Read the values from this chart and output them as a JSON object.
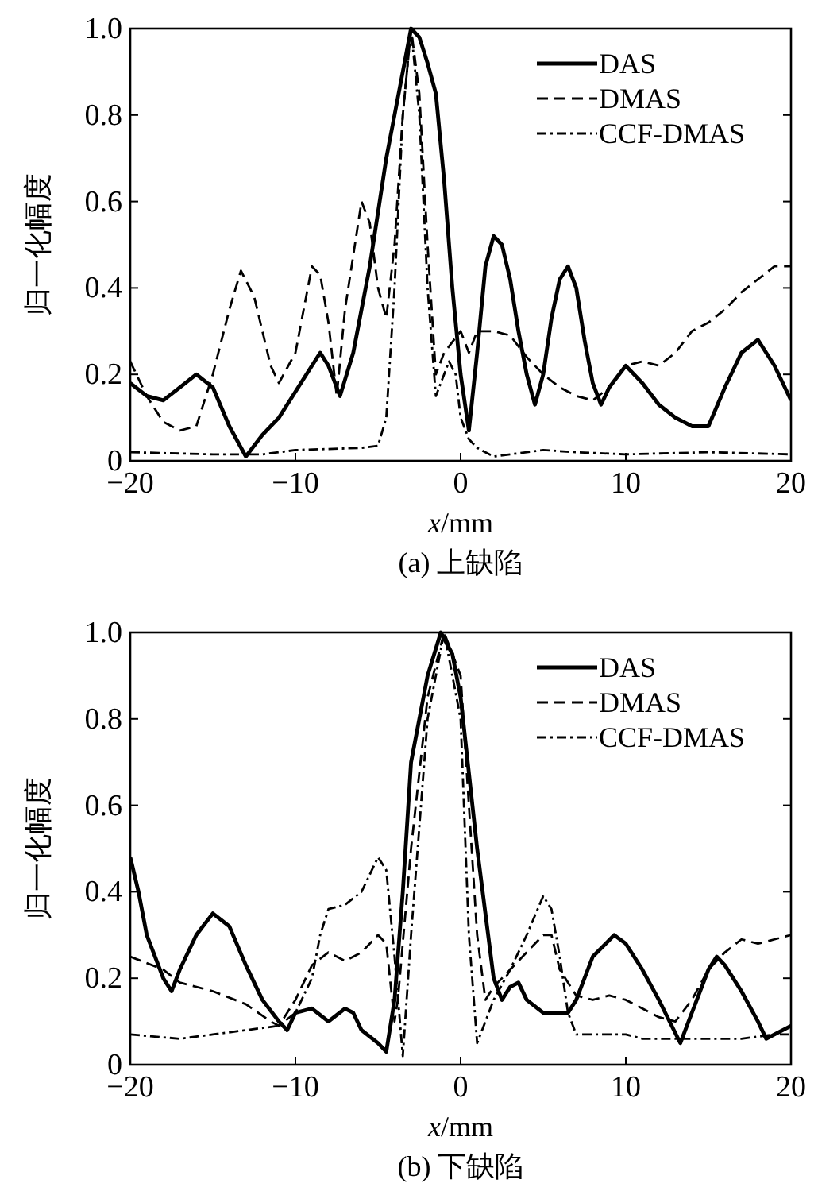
{
  "chart_data": [
    {
      "type": "line",
      "title": "(a) 上缺陷",
      "xlabel": "x/mm",
      "ylabel": "归一化幅度",
      "xlim": [
        -20,
        20
      ],
      "xticks": [
        -20,
        -10,
        0,
        10,
        20
      ],
      "ylim": [
        0,
        1
      ],
      "yticks": [
        0,
        0.2,
        0.4,
        0.6,
        0.8,
        {
          "value": 1,
          "label": "1.0"
        }
      ],
      "legend": "top right",
      "series": [
        {
          "name": "DAS",
          "color": "#000000",
          "line_style": "solid",
          "x": [
            -20,
            -19,
            -18,
            -17,
            -16,
            -15,
            -14,
            -13,
            -12,
            -11,
            -10,
            -9,
            -8.5,
            -8,
            -7.3,
            -6.5,
            -5.5,
            -4.5,
            -3.5,
            -3,
            -2.5,
            -2,
            -1.5,
            -1,
            -0.5,
            0,
            0.5,
            1,
            1.5,
            2,
            2.5,
            3,
            3.5,
            4,
            4.5,
            5,
            5.5,
            6,
            6.5,
            7,
            7.5,
            8,
            8.5,
            9,
            10,
            11,
            12,
            13,
            14,
            15,
            16,
            17,
            18,
            19,
            20
          ],
          "values": [
            0.18,
            0.15,
            0.14,
            0.17,
            0.2,
            0.17,
            0.08,
            0.01,
            0.06,
            0.1,
            0.16,
            0.22,
            0.25,
            0.22,
            0.15,
            0.25,
            0.45,
            0.7,
            0.9,
            1.0,
            0.98,
            0.92,
            0.85,
            0.65,
            0.4,
            0.2,
            0.07,
            0.25,
            0.45,
            0.52,
            0.5,
            0.42,
            0.3,
            0.2,
            0.13,
            0.2,
            0.33,
            0.42,
            0.45,
            0.4,
            0.28,
            0.18,
            0.13,
            0.17,
            0.22,
            0.18,
            0.13,
            0.1,
            0.08,
            0.08,
            0.17,
            0.25,
            0.28,
            0.22,
            0.14
          ]
        },
        {
          "name": "DMAS",
          "color": "#000000",
          "line_style": "dashed",
          "x": [
            -20,
            -19,
            -18,
            -17,
            -16,
            -15,
            -14,
            -13.3,
            -12.5,
            -11.5,
            -11,
            -10,
            -9,
            -8.5,
            -8,
            -7.5,
            -7,
            -6,
            -5.5,
            -5,
            -4.5,
            -4,
            -3.5,
            -3,
            -2.5,
            -2,
            -1.5,
            -1,
            0,
            0.5,
            1,
            2,
            3,
            4,
            5,
            6,
            7,
            8,
            9,
            10,
            11,
            12,
            13,
            14,
            15,
            16,
            17,
            18,
            19,
            20
          ],
          "values": [
            0.23,
            0.15,
            0.09,
            0.07,
            0.08,
            0.2,
            0.35,
            0.44,
            0.38,
            0.22,
            0.18,
            0.25,
            0.45,
            0.43,
            0.32,
            0.15,
            0.35,
            0.6,
            0.55,
            0.4,
            0.33,
            0.5,
            0.8,
            1.0,
            0.85,
            0.5,
            0.2,
            0.25,
            0.3,
            0.25,
            0.3,
            0.3,
            0.29,
            0.24,
            0.2,
            0.17,
            0.15,
            0.14,
            0.17,
            0.22,
            0.23,
            0.22,
            0.25,
            0.3,
            0.32,
            0.35,
            0.39,
            0.42,
            0.45,
            0.45
          ]
        },
        {
          "name": "CCF-DMAS",
          "color": "#000000",
          "line_style": "dashdot",
          "x": [
            -20,
            -15,
            -12,
            -10,
            -6,
            -5,
            -4.5,
            -4,
            -3.5,
            -3,
            -2.5,
            -2,
            -1.5,
            -1,
            -0.7,
            -0.3,
            0,
            0.5,
            1,
            2,
            5,
            7,
            10,
            15,
            20
          ],
          "values": [
            0.02,
            0.015,
            0.015,
            0.025,
            0.03,
            0.035,
            0.1,
            0.4,
            0.8,
            1.0,
            0.8,
            0.4,
            0.15,
            0.2,
            0.23,
            0.2,
            0.1,
            0.05,
            0.03,
            0.01,
            0.025,
            0.02,
            0.015,
            0.02,
            0.015
          ]
        }
      ]
    },
    {
      "type": "line",
      "title": "(b) 下缺陷",
      "xlabel": "x/mm",
      "ylabel": "归一化幅度",
      "xlim": [
        -20,
        20
      ],
      "xticks": [
        -20,
        -10,
        0,
        10,
        20
      ],
      "ylim": [
        0,
        1
      ],
      "yticks": [
        0,
        0.2,
        0.4,
        0.6,
        0.8,
        {
          "value": 1,
          "label": "1.0"
        }
      ],
      "legend": "top right",
      "series": [
        {
          "name": "DAS",
          "color": "#000000",
          "line_style": "solid",
          "x": [
            -20,
            -19.5,
            -19,
            -18,
            -17.5,
            -17,
            -16,
            -15,
            -14,
            -13,
            -12,
            -11,
            -10.5,
            -10,
            -9,
            -8,
            -7,
            -6.5,
            -6,
            -5,
            -4.5,
            -4,
            -3.5,
            -3,
            -2,
            -1.2,
            -0.5,
            0,
            1,
            1.5,
            2,
            2.5,
            3,
            3.5,
            4,
            5,
            6,
            6.5,
            7,
            8,
            9.3,
            10,
            11,
            12,
            13.3,
            14,
            15,
            15.5,
            16,
            17,
            18,
            18.5,
            19,
            20
          ],
          "values": [
            0.48,
            0.4,
            0.3,
            0.2,
            0.17,
            0.22,
            0.3,
            0.35,
            0.32,
            0.23,
            0.15,
            0.1,
            0.08,
            0.12,
            0.13,
            0.1,
            0.13,
            0.12,
            0.08,
            0.05,
            0.03,
            0.15,
            0.4,
            0.7,
            0.9,
            1.0,
            0.95,
            0.85,
            0.5,
            0.35,
            0.2,
            0.15,
            0.18,
            0.19,
            0.15,
            0.12,
            0.12,
            0.12,
            0.15,
            0.25,
            0.3,
            0.28,
            0.22,
            0.15,
            0.05,
            0.12,
            0.22,
            0.25,
            0.23,
            0.17,
            0.1,
            0.06,
            0.07,
            0.09
          ]
        },
        {
          "name": "DMAS",
          "color": "#000000",
          "line_style": "dashed",
          "x": [
            -20,
            -18,
            -17,
            -15,
            -13,
            -11.5,
            -11,
            -10,
            -9,
            -8,
            -7,
            -6,
            -5,
            -4.5,
            -4,
            -3.8,
            -3,
            -2,
            -1,
            0,
            0.5,
            1,
            1.5,
            2,
            3,
            4,
            5,
            5.5,
            6,
            7,
            8,
            9,
            10,
            11,
            12,
            13,
            14,
            15,
            16,
            17,
            18,
            19,
            20
          ],
          "values": [
            0.25,
            0.22,
            0.19,
            0.17,
            0.14,
            0.1,
            0.09,
            0.15,
            0.23,
            0.26,
            0.24,
            0.26,
            0.3,
            0.28,
            0.1,
            0.15,
            0.5,
            0.85,
            1.0,
            0.9,
            0.6,
            0.3,
            0.15,
            0.18,
            0.22,
            0.26,
            0.3,
            0.3,
            0.22,
            0.16,
            0.15,
            0.16,
            0.15,
            0.13,
            0.11,
            0.1,
            0.15,
            0.22,
            0.26,
            0.29,
            0.28,
            0.29,
            0.3
          ]
        },
        {
          "name": "CCF-DMAS",
          "color": "#000000",
          "line_style": "dashdot",
          "x": [
            -20,
            -17,
            -15,
            -13,
            -11,
            -10,
            -9,
            -8.5,
            -8,
            -7,
            -6,
            -5,
            -4.5,
            -4,
            -3.5,
            -3,
            -2,
            -1,
            0,
            0.5,
            1,
            2,
            3,
            4,
            5,
            5.5,
            6,
            6.5,
            7,
            9,
            10,
            11,
            13,
            15,
            17,
            19,
            20
          ],
          "values": [
            0.07,
            0.06,
            0.07,
            0.08,
            0.09,
            0.12,
            0.2,
            0.3,
            0.36,
            0.37,
            0.4,
            0.48,
            0.45,
            0.25,
            0.02,
            0.3,
            0.8,
            1.0,
            0.8,
            0.3,
            0.05,
            0.15,
            0.22,
            0.3,
            0.39,
            0.36,
            0.25,
            0.12,
            0.07,
            0.07,
            0.07,
            0.06,
            0.06,
            0.06,
            0.06,
            0.07,
            0.07
          ]
        }
      ]
    }
  ]
}
